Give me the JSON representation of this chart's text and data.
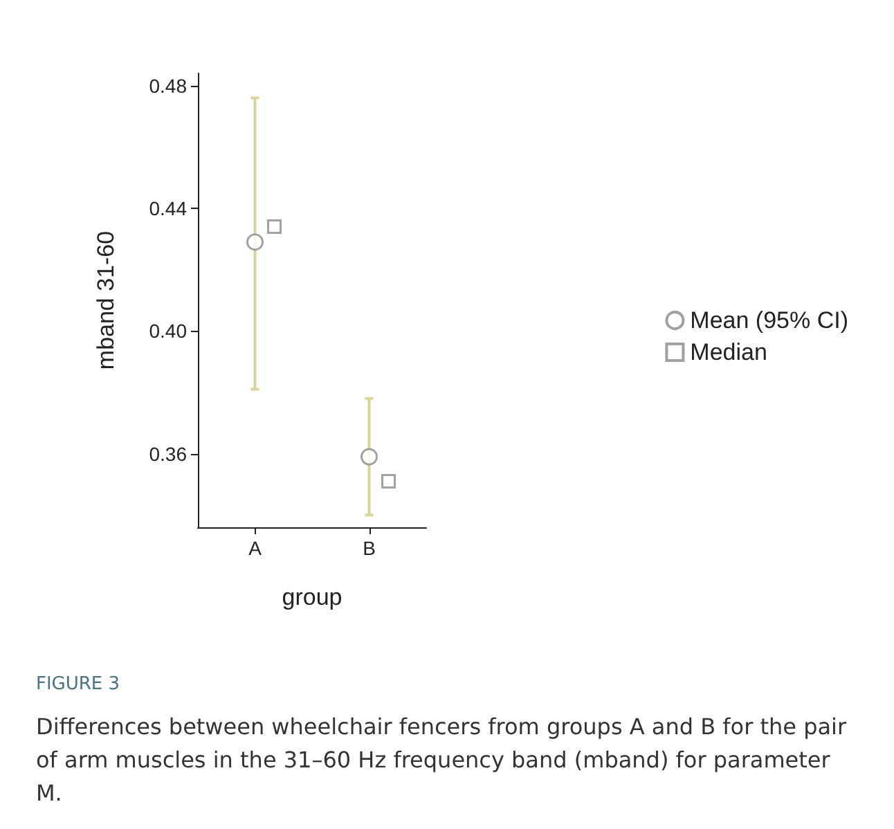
{
  "chart_data": {
    "type": "scatter",
    "xlabel": "group",
    "ylabel": "mband 31-60",
    "categories": [
      "A",
      "B"
    ],
    "series": [
      {
        "name": "Mean (95% CI)",
        "color": "#8a8a8a",
        "marker": "circle",
        "values": [
          0.429,
          0.359
        ],
        "errors": [
          [
            0.381,
            0.476
          ],
          [
            0.34,
            0.378
          ]
        ]
      },
      {
        "name": "Median",
        "color": "#8a8a8a",
        "marker": "square",
        "values": [
          0.434,
          0.351
        ]
      }
    ],
    "ylim": [
      0.336,
      0.484
    ],
    "yticks": [
      {
        "value": 0.36,
        "label": "0.36"
      },
      {
        "value": 0.4,
        "label": "0.40"
      },
      {
        "value": 0.44,
        "label": "0.44"
      },
      {
        "value": 0.48,
        "label": "0.48"
      }
    ],
    "grid": false,
    "legend": "right",
    "annotations": [
      "FIGURE 3",
      "Differences between wheelchair fencers from groups A and B for the pair of arm muscles in the 31–60 Hz frequency band (mband) for parameter M."
    ]
  }
}
